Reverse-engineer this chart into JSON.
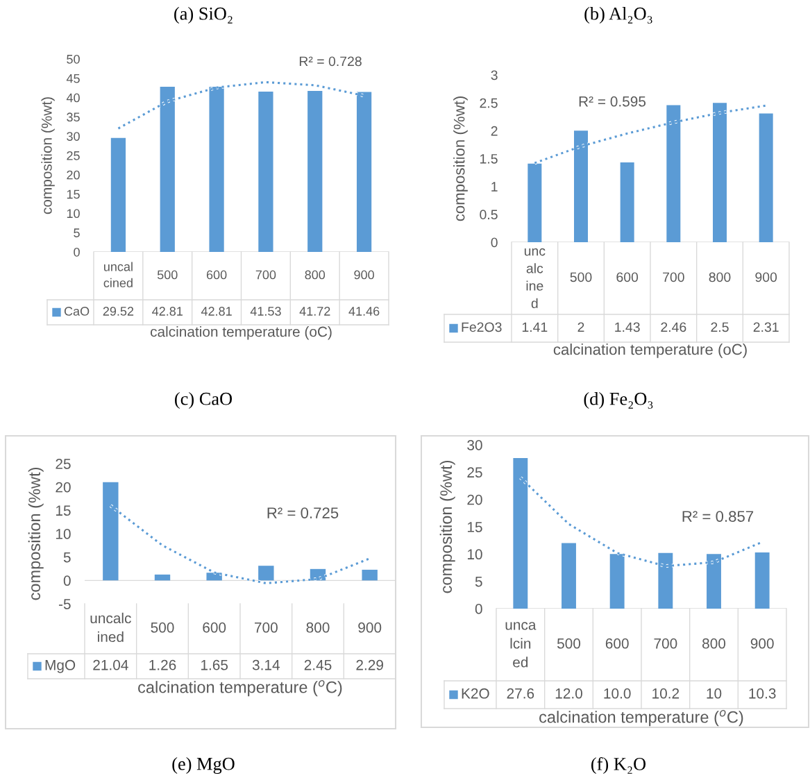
{
  "chart_data": [
    {
      "type": "bar",
      "categories": [
        "uncalcined",
        "500",
        "600",
        "700",
        "800",
        "900"
      ],
      "xlabel": "calcination temperature (oC)",
      "ylabel": "composition (%wt)",
      "ylim": [
        0,
        50
      ],
      "yticks": [
        0,
        5,
        10,
        15,
        20,
        25,
        30,
        35,
        40,
        45,
        50
      ],
      "grid": false,
      "legend": "bottom",
      "series": [
        {
          "name": "CaO",
          "color": "#5b9bd5",
          "values": [
            29.52,
            42.81,
            42.81,
            41.53,
            41.72,
            41.46
          ],
          "value_labels": [
            "29.52",
            "42.81",
            "42.81",
            "41.53",
            "41.72",
            "41.46"
          ]
        },
        {
          "type": "line",
          "color": "#5b9bd5",
          "line_style": "dotted",
          "values": [
            32,
            39,
            42.6,
            44,
            43.2,
            40.5
          ]
        }
      ],
      "annotations": [
        "R² = 0.728",
        "(a) SiO₂",
        "(c) CaO"
      ]
    },
    {
      "type": "bar",
      "categories": [
        "uncalcined",
        "500",
        "600",
        "700",
        "800",
        "900"
      ],
      "xlabel": "calcination temperature (oC)",
      "ylabel": "composition (%wt)",
      "ylim": [
        0,
        3
      ],
      "yticks": [
        0,
        0.5,
        1,
        1.5,
        2,
        2.5,
        3
      ],
      "grid": false,
      "legend": "bottom",
      "series": [
        {
          "name": "Fe2O3",
          "color": "#5b9bd5",
          "values": [
            1.41,
            2,
            1.43,
            2.46,
            2.5,
            2.31
          ],
          "value_labels": [
            "1.41",
            "2",
            "1.43",
            "2.46",
            "2.5",
            "2.31"
          ]
        },
        {
          "type": "line",
          "color": "#5b9bd5",
          "line_style": "dotted",
          "values": [
            1.42,
            1.72,
            1.95,
            2.15,
            2.32,
            2.45
          ]
        }
      ],
      "annotations": [
        "R² = 0.595",
        "(b) Al₂O₃",
        "(d) Fe₂O₃"
      ]
    },
    {
      "type": "bar",
      "categories": [
        "uncalcined",
        "500",
        "600",
        "700",
        "800",
        "900"
      ],
      "xlabel": "calcination temperature ($^{o}$C)",
      "ylabel": "composition (%wt)",
      "ylim": [
        -5,
        25
      ],
      "yticks": [
        -5,
        0,
        5,
        10,
        15,
        20,
        25
      ],
      "grid": false,
      "legend": "bottom",
      "series": [
        {
          "name": "MgO",
          "color": "#5b9bd5",
          "values": [
            21.04,
            1.26,
            1.65,
            3.14,
            2.45,
            2.29
          ],
          "value_labels": [
            "21.04",
            "1.26",
            "1.65",
            "3.14",
            "2.45",
            "2.29"
          ]
        },
        {
          "type": "line",
          "color": "#5b9bd5",
          "line_style": "dotted",
          "values": [
            16,
            7.5,
            1.7,
            -0.6,
            0.3,
            4.7
          ]
        }
      ],
      "annotations": [
        "R² = 0.725",
        "(e) MgO"
      ]
    },
    {
      "type": "bar",
      "categories": [
        "uncalcined",
        "500",
        "600",
        "700",
        "800",
        "900"
      ],
      "xlabel": "calcination temperature ($^{o}$C)",
      "ylabel": "composition (%wt)",
      "ylim": [
        0,
        30
      ],
      "yticks": [
        0,
        5,
        10,
        15,
        20,
        25,
        30
      ],
      "grid": false,
      "legend": "bottom",
      "series": [
        {
          "name": "K2O",
          "color": "#5b9bd5",
          "values": [
            27.6,
            12.0,
            10.0,
            10.2,
            10,
            10.3
          ],
          "value_labels": [
            "27.6",
            "12.0",
            "10.0",
            "10.2",
            "10",
            "10.3"
          ]
        },
        {
          "type": "line",
          "color": "#5b9bd5",
          "line_style": "dotted",
          "values": [
            24,
            15.5,
            10.2,
            7.8,
            8.5,
            12.2
          ]
        }
      ],
      "annotations": [
        "R² = 0.857",
        "(f) K₂O"
      ]
    }
  ]
}
